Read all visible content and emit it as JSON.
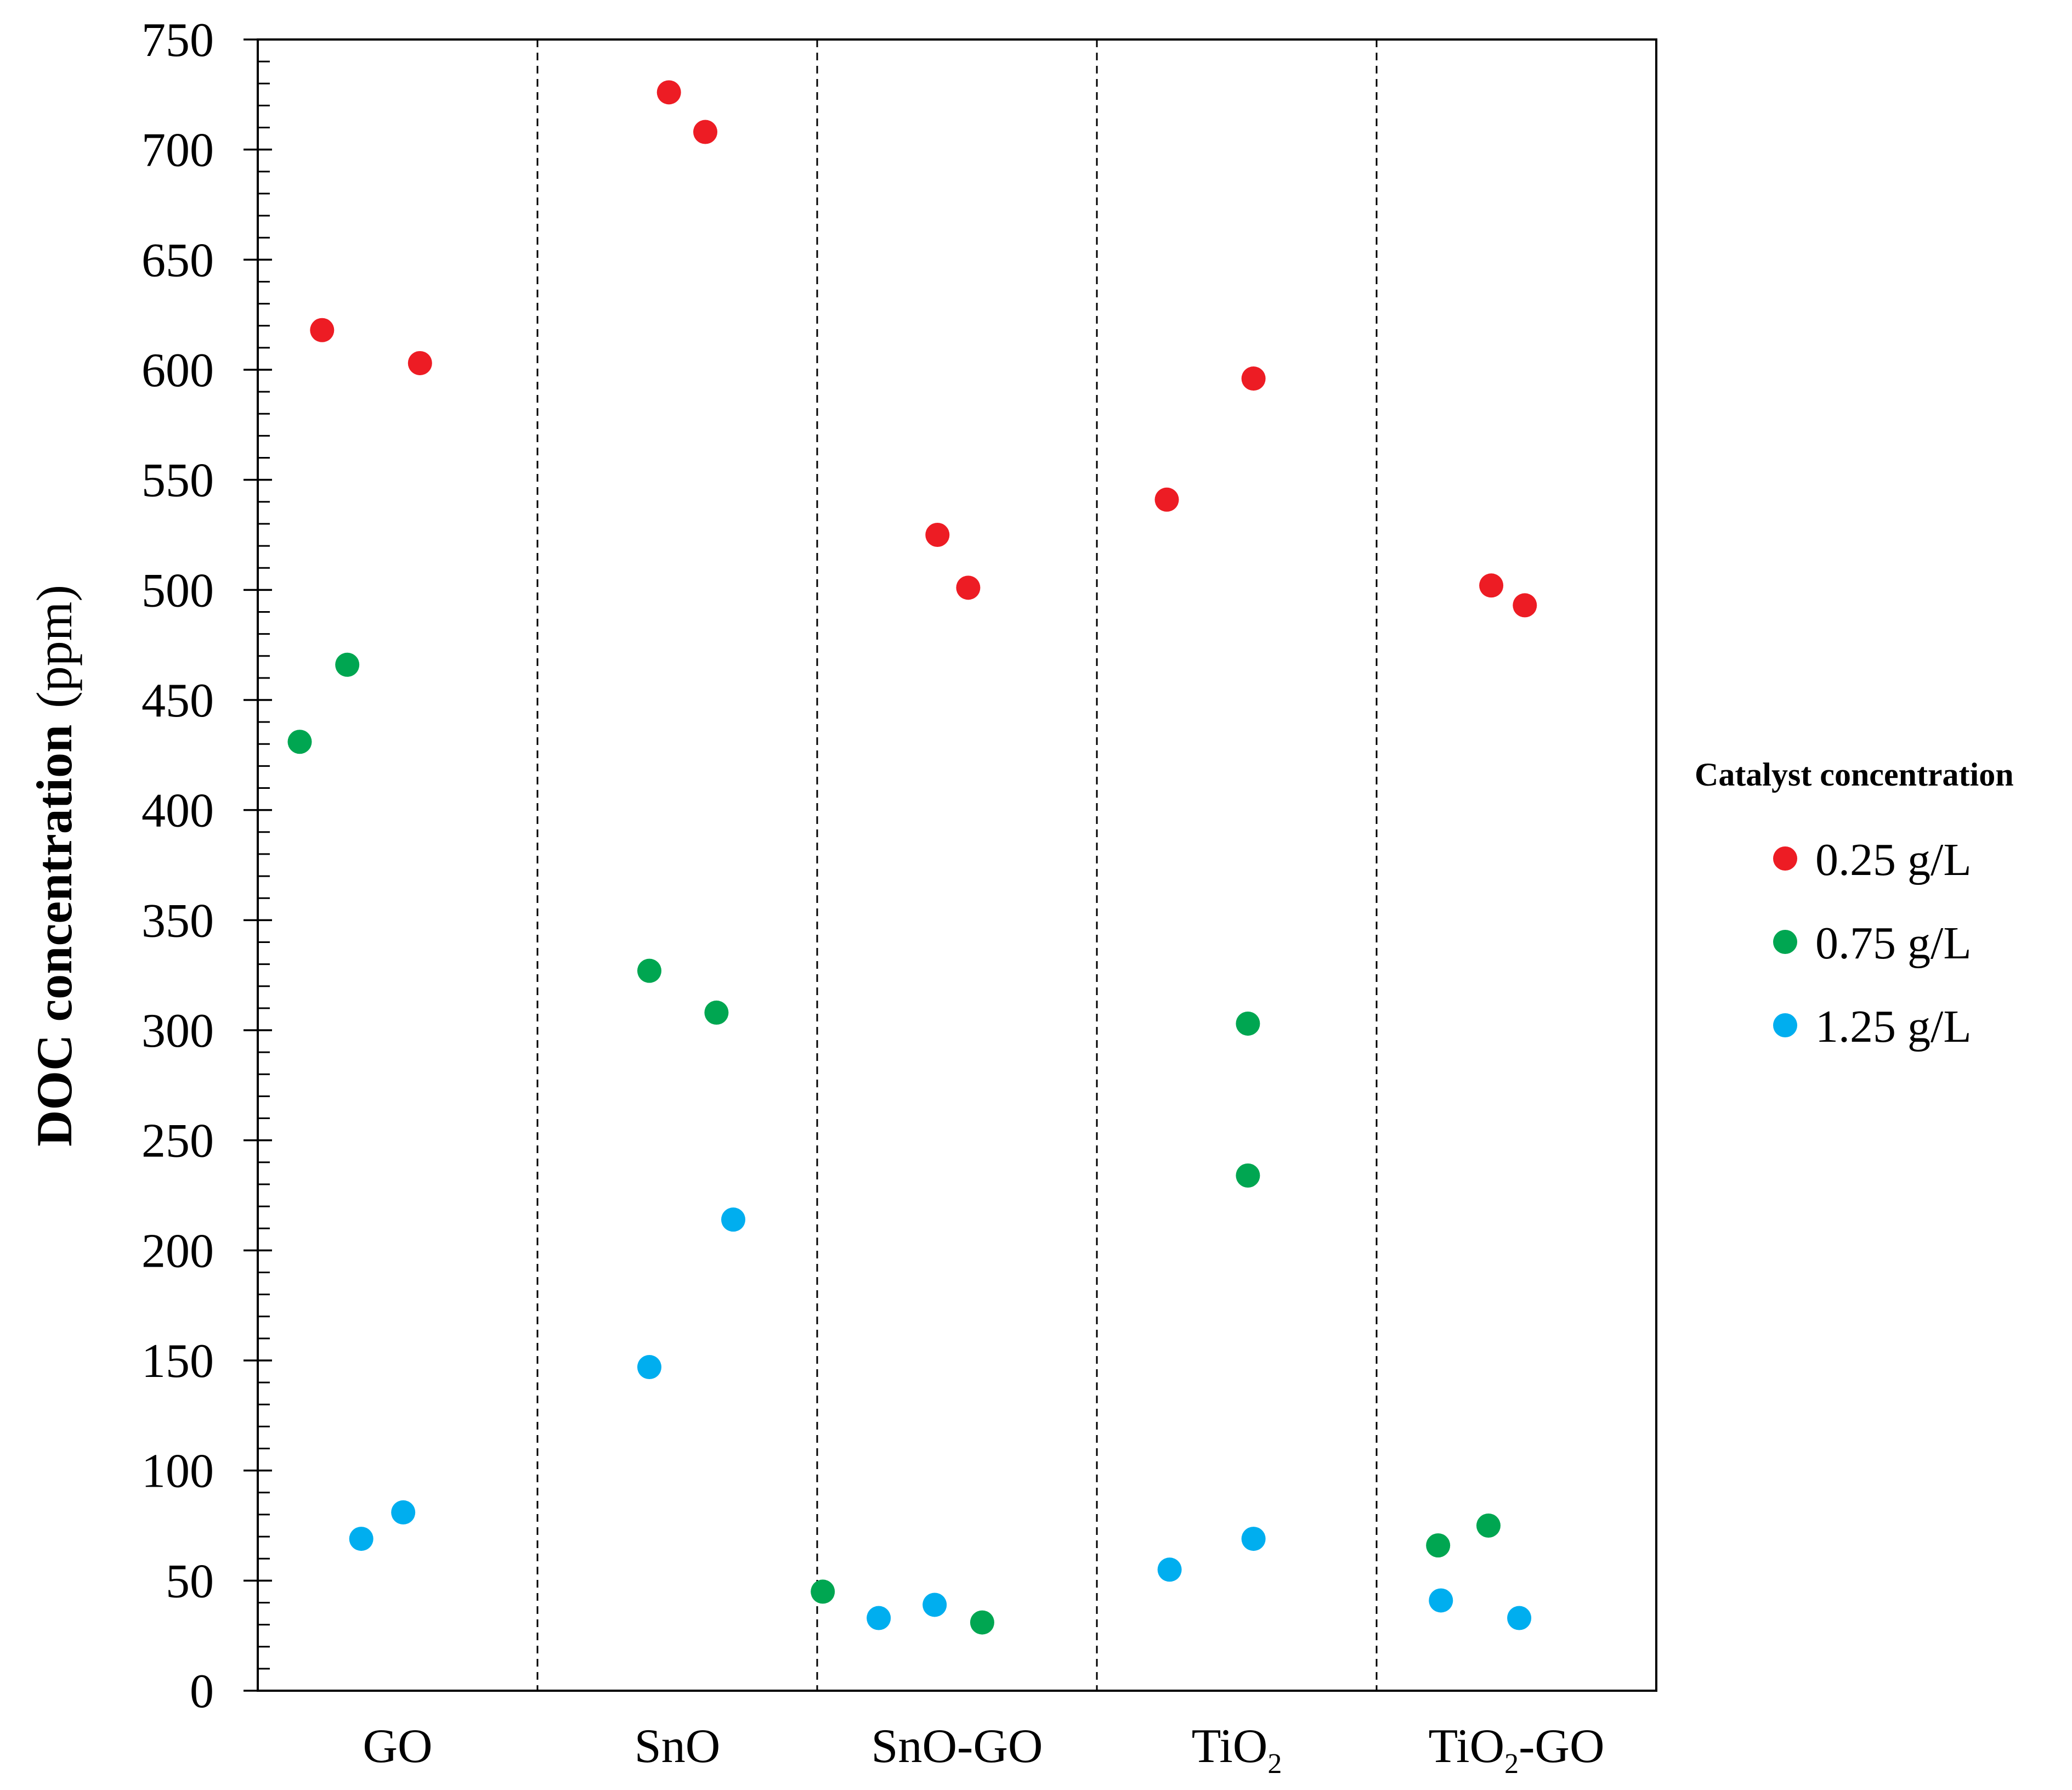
{
  "chart_data": {
    "type": "scatter",
    "title": "",
    "xlabel": "",
    "ylabel": "DOC concentration",
    "ylabel_unit": "(ppm)",
    "ylim": [
      0,
      750
    ],
    "yticks": [
      0,
      50,
      100,
      150,
      200,
      250,
      300,
      350,
      400,
      450,
      500,
      550,
      600,
      650,
      700,
      750
    ],
    "ytick_labels": [
      "0",
      "50",
      "100",
      "150",
      "200",
      "250",
      "300",
      "350",
      "400",
      "450",
      "500",
      "550",
      "600",
      "650",
      "700",
      "750"
    ],
    "y_minor_step": 10,
    "grid": false,
    "category_separators": "dashed",
    "categories": [
      {
        "key": "GO",
        "base": "GO",
        "sub": "",
        "suffix": ""
      },
      {
        "key": "SnO",
        "base": "SnO",
        "sub": "",
        "suffix": ""
      },
      {
        "key": "SnO-GO",
        "base": "SnO-GO",
        "sub": "",
        "suffix": ""
      },
      {
        "key": "TiO2",
        "base": "TiO",
        "sub": "2",
        "suffix": ""
      },
      {
        "key": "TiO2-GO",
        "base": "TiO",
        "sub": "2",
        "suffix": "-GO"
      }
    ],
    "legend": {
      "title": "Catalyst concentration",
      "placement": "right",
      "entries": [
        {
          "label": "0.25 g/L",
          "color": "#ed1c24"
        },
        {
          "label": "0.75 g/L",
          "color": "#00a651"
        },
        {
          "label": "1.25 g/L",
          "color": "#00aeef"
        }
      ]
    },
    "series": [
      {
        "name": "0.25 g/L",
        "color": "#ed1c24",
        "points": [
          {
            "category": 0,
            "offset": -0.27,
            "y": 618
          },
          {
            "category": 0,
            "offset": 0.08,
            "y": 603
          },
          {
            "category": 1,
            "offset": -0.03,
            "y": 726
          },
          {
            "category": 1,
            "offset": 0.1,
            "y": 708
          },
          {
            "category": 2,
            "offset": -0.07,
            "y": 525
          },
          {
            "category": 2,
            "offset": 0.04,
            "y": 501
          },
          {
            "category": 3,
            "offset": -0.25,
            "y": 541
          },
          {
            "category": 3,
            "offset": 0.06,
            "y": 596
          },
          {
            "category": 4,
            "offset": -0.09,
            "y": 502
          },
          {
            "category": 4,
            "offset": 0.03,
            "y": 493
          }
        ]
      },
      {
        "name": "0.75 g/L",
        "color": "#00a651",
        "points": [
          {
            "category": 0,
            "offset": -0.18,
            "y": 466
          },
          {
            "category": 0,
            "offset": -0.35,
            "y": 431
          },
          {
            "category": 1,
            "offset": -0.1,
            "y": 327
          },
          {
            "category": 1,
            "offset": 0.14,
            "y": 308
          },
          {
            "category": 2,
            "offset": -0.48,
            "y": 45
          },
          {
            "category": 2,
            "offset": 0.09,
            "y": 31
          },
          {
            "category": 3,
            "offset": 0.04,
            "y": 303
          },
          {
            "category": 3,
            "offset": 0.04,
            "y": 234
          },
          {
            "category": 4,
            "offset": -0.28,
            "y": 66
          },
          {
            "category": 4,
            "offset": -0.1,
            "y": 75
          }
        ]
      },
      {
        "name": "1.25 g/L",
        "color": "#00aeef",
        "points": [
          {
            "category": 0,
            "offset": -0.13,
            "y": 69
          },
          {
            "category": 0,
            "offset": 0.02,
            "y": 81
          },
          {
            "category": 1,
            "offset": -0.1,
            "y": 147
          },
          {
            "category": 1,
            "offset": 0.2,
            "y": 214
          },
          {
            "category": 2,
            "offset": -0.28,
            "y": 33
          },
          {
            "category": 2,
            "offset": -0.08,
            "y": 39
          },
          {
            "category": 3,
            "offset": -0.24,
            "y": 55
          },
          {
            "category": 3,
            "offset": 0.06,
            "y": 69
          },
          {
            "category": 4,
            "offset": -0.27,
            "y": 41
          },
          {
            "category": 4,
            "offset": 0.01,
            "y": 33
          }
        ]
      }
    ]
  }
}
